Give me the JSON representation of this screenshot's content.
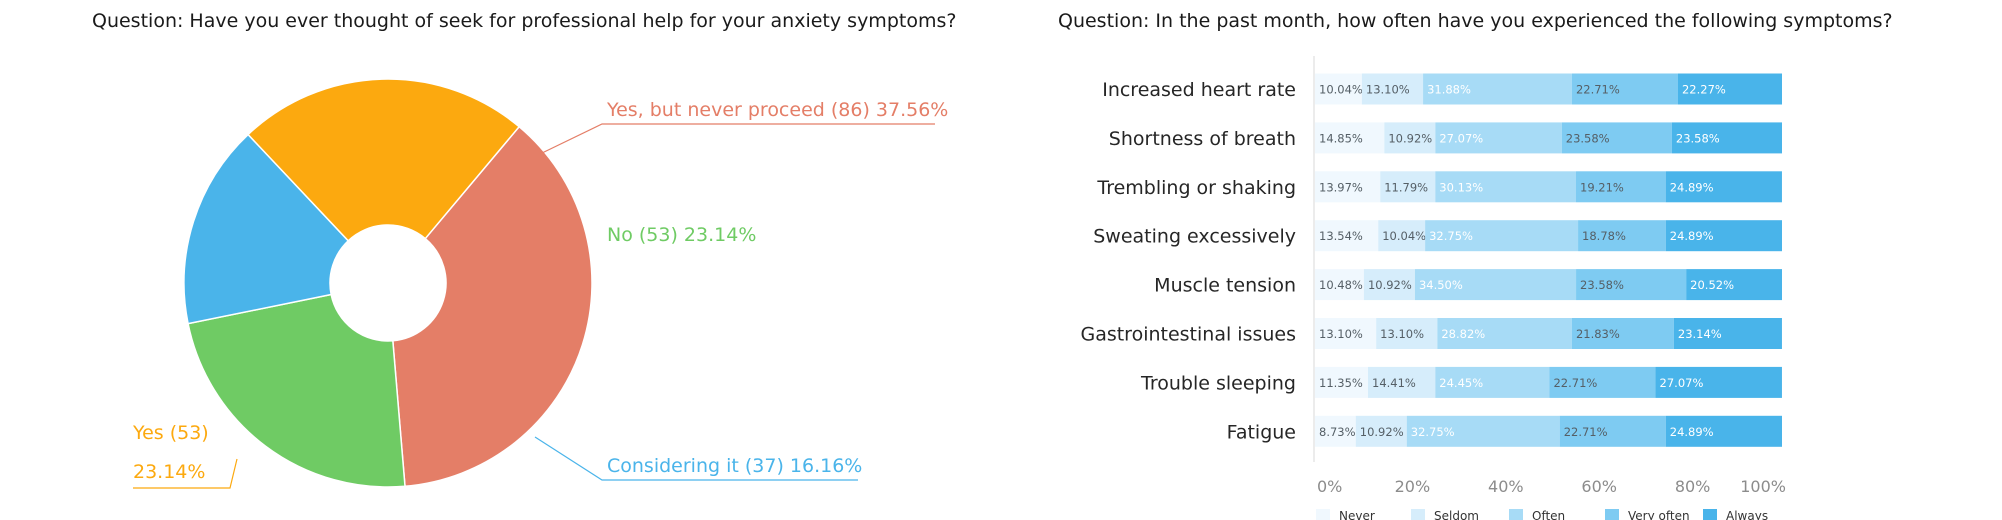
{
  "chart_data": [
    {
      "type": "pie",
      "title": "Question: Have you ever thought of seek for professional help for your anxiety symptoms?",
      "slices": [
        {
          "label": "Yes, but never proceed",
          "count": 86,
          "percent": 37.56,
          "display_label": "Yes, but never proceed (86)",
          "display_percent": "37.56%",
          "color": "#e47e67"
        },
        {
          "label": "No",
          "count": 53,
          "percent": 23.14,
          "display_label": "No (53)",
          "display_percent": "23.14%",
          "color": "#6fcb64"
        },
        {
          "label": "Considering it",
          "count": 37,
          "percent": 16.16,
          "display_label": "Considering it (37)",
          "display_percent": "16.16%",
          "color": "#4ab4ea"
        },
        {
          "label": "Yes",
          "count": 53,
          "percent": 23.14,
          "display_label": "Yes (53)",
          "display_percent": "23.14%",
          "color": "#fca90f"
        }
      ]
    },
    {
      "type": "bar",
      "stacked": true,
      "orientation": "horizontal",
      "title": "Question: In the past month, how often have you experienced the following symptoms?",
      "categories": [
        "Increased heart rate",
        "Shortness of breath",
        "Trembling or shaking",
        "Sweating excessively",
        "Muscle tension",
        "Gastrointestinal issues",
        "Trouble sleeping",
        "Fatigue"
      ],
      "series": [
        {
          "name": "Never",
          "color": "#f0f8fe",
          "values": [
            10.04,
            14.85,
            13.97,
            13.54,
            10.48,
            13.1,
            11.35,
            8.73
          ]
        },
        {
          "name": "Seldom",
          "color": "#d6edfb",
          "values": [
            13.1,
            10.92,
            11.79,
            10.04,
            10.92,
            13.1,
            14.41,
            10.92
          ]
        },
        {
          "name": "Often",
          "color": "#a7dbf6",
          "values": [
            31.88,
            27.07,
            30.13,
            32.75,
            34.5,
            28.82,
            24.45,
            32.75
          ]
        },
        {
          "name": "Very often",
          "color": "#7ecbf2",
          "values": [
            22.71,
            23.58,
            19.21,
            18.78,
            23.58,
            21.83,
            22.71,
            22.71
          ]
        },
        {
          "name": "Always",
          "color": "#49b4ea",
          "values": [
            22.27,
            23.58,
            24.89,
            24.89,
            20.52,
            23.14,
            27.07,
            24.89
          ]
        }
      ],
      "xlim": [
        0,
        100
      ],
      "x_ticks": [
        "0%",
        "20%",
        "40%",
        "60%",
        "80%",
        "100%"
      ],
      "legend_position": "bottom",
      "grid": false
    }
  ]
}
